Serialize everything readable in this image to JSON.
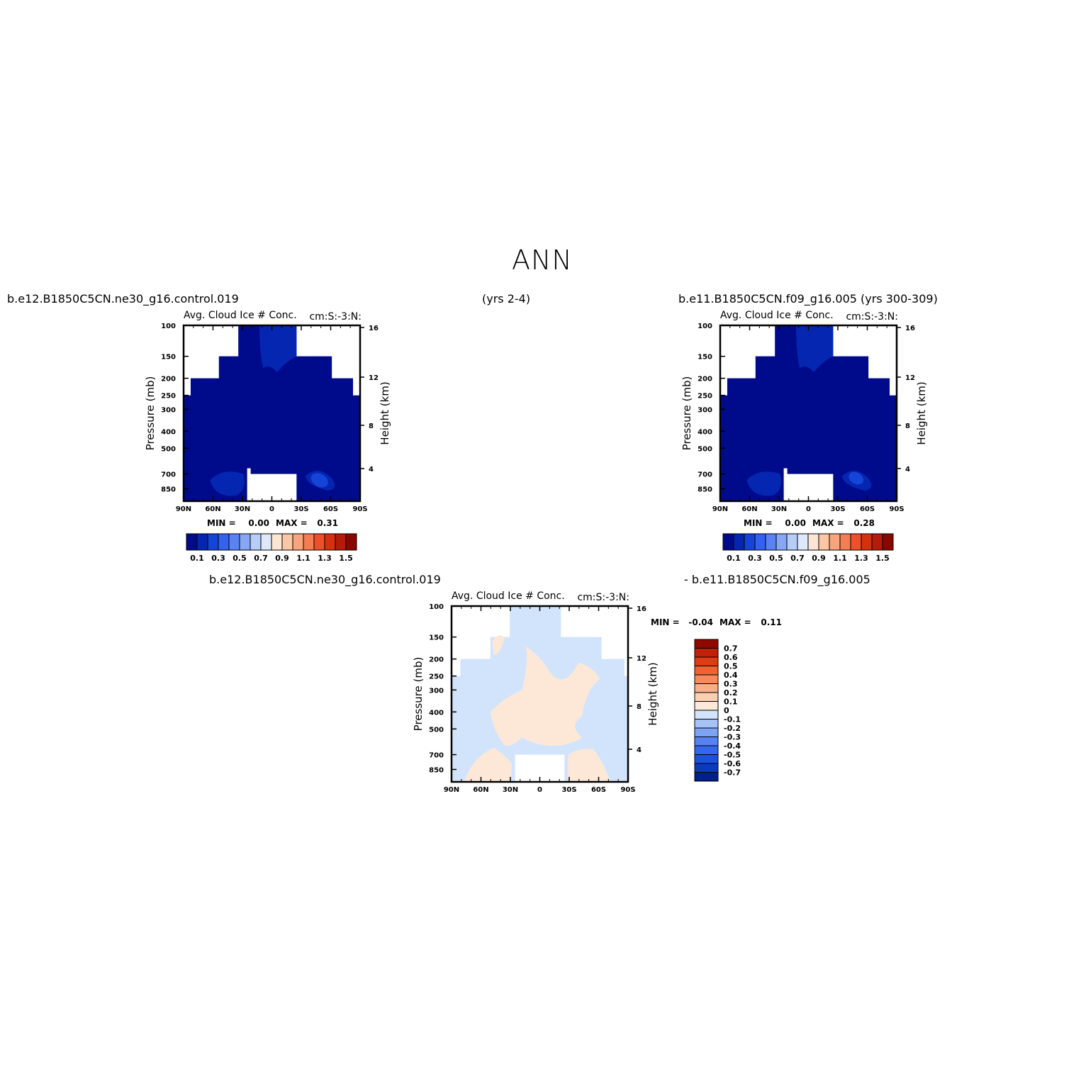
{
  "page": {
    "title": "ANN",
    "top_left_case": "b.e12.B1850C5CN.ne30_g16.control.019",
    "top_center_years": "(yrs 2-4)",
    "top_right_case": "b.e11.B1850C5CN.f09_g16.005 (yrs 300-309)",
    "diff_left_case": "b.e12.B1850C5CN.ne30_g16.control.019",
    "diff_right_case": "- b.e11.B1850C5CN.f09_g16.005"
  },
  "colors": {
    "abs_levels": [
      "#000b8c",
      "#0526b0",
      "#1544d8",
      "#3561f0",
      "#5b82f5",
      "#86a6f7",
      "#b6cdf7",
      "#dde9fb",
      "#fde5d3",
      "#fcc6a5",
      "#f9a47c",
      "#f57d52",
      "#ee5128",
      "#d6310f",
      "#b51b08",
      "#8c0600"
    ],
    "diff_levels": [
      "#00208c",
      "#0a3bbd",
      "#1a52de",
      "#3567ee",
      "#5583f2",
      "#7ca3f4",
      "#a5c2f5",
      "#d2e4fb",
      "#fde8d8",
      "#fccfb3",
      "#f9ad89",
      "#f58a5d",
      "#ee6234",
      "#de3c12",
      "#c0210a",
      "#8f0800"
    ]
  },
  "chart_data": [
    {
      "type": "heatmap",
      "panel": "case1",
      "left_title": "Avg. Cloud Ice # Conc.",
      "right_title": "cm:S:-3:N:",
      "ylabel": "Pressure (mb)",
      "ylabel_right": "Height (km)",
      "x_ticks": [
        "90N",
        "60N",
        "30N",
        "0",
        "30S",
        "60S",
        "90S"
      ],
      "y_ticks": [
        "100",
        "150",
        "200",
        "250",
        "300",
        "400",
        "500",
        "700",
        "850"
      ],
      "y_right_ticks": [
        "16",
        "12",
        "8",
        "4"
      ],
      "min_label": "MIN =",
      "min_value": "0.00",
      "max_label": "MAX =",
      "max_value": "0.31",
      "colorbar_labels": [
        "0.1",
        "0.3",
        "0.5",
        "0.7",
        "0.9",
        "1.1",
        "1.3",
        "1.5"
      ]
    },
    {
      "type": "heatmap",
      "panel": "case2",
      "left_title": "Avg. Cloud Ice # Conc.",
      "right_title": "cm:S:-3:N:",
      "ylabel": "Pressure (mb)",
      "ylabel_right": "Height (km)",
      "x_ticks": [
        "90N",
        "60N",
        "30N",
        "0",
        "30S",
        "60S",
        "90S"
      ],
      "y_ticks": [
        "100",
        "150",
        "200",
        "250",
        "300",
        "400",
        "500",
        "700",
        "850"
      ],
      "y_right_ticks": [
        "16",
        "12",
        "8",
        "4"
      ],
      "min_label": "MIN =",
      "min_value": "0.00",
      "max_label": "MAX =",
      "max_value": "0.28",
      "colorbar_labels": [
        "0.1",
        "0.3",
        "0.5",
        "0.7",
        "0.9",
        "1.1",
        "1.3",
        "1.5"
      ]
    },
    {
      "type": "heatmap",
      "panel": "difference",
      "left_title": "Avg. Cloud Ice # Conc.",
      "right_title": "cm:S:-3:N:",
      "ylabel": "Pressure (mb)",
      "ylabel_right": "Height (km)",
      "x_ticks": [
        "90N",
        "60N",
        "30N",
        "0",
        "30S",
        "60S",
        "90S"
      ],
      "y_ticks": [
        "100",
        "150",
        "200",
        "250",
        "300",
        "400",
        "500",
        "700",
        "850"
      ],
      "y_right_ticks": [
        "16",
        "12",
        "8",
        "4"
      ],
      "min_label": "MIN =",
      "min_value": "-0.04",
      "max_label": "MAX =",
      "max_value": "0.11",
      "colorbar_labels": [
        "0.7",
        "0.6",
        "0.5",
        "0.4",
        "0.3",
        "0.2",
        "0.1",
        "0",
        "-0.1",
        "-0.2",
        "-0.3",
        "-0.4",
        "-0.5",
        "-0.6",
        "-0.7"
      ]
    }
  ]
}
